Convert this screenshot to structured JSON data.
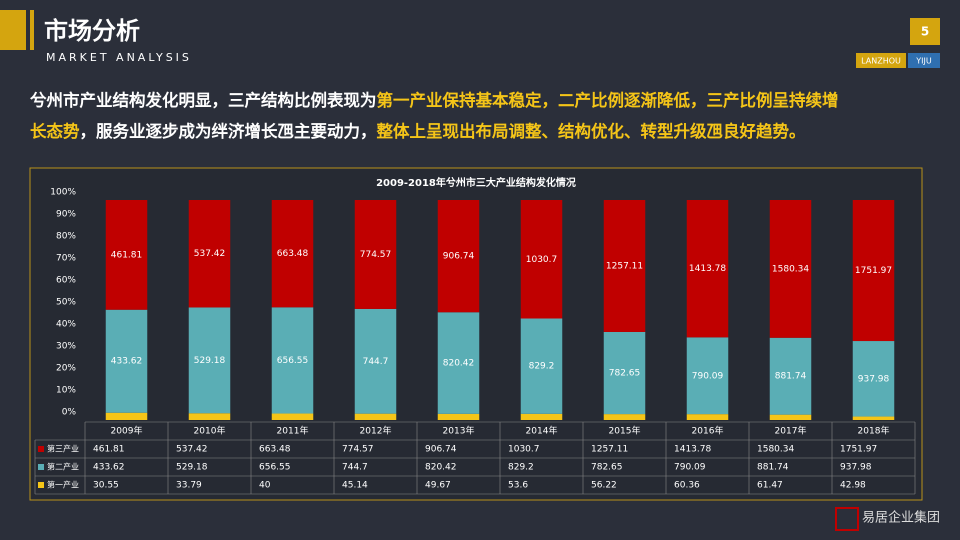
{
  "header": {
    "title": "市场分析",
    "subtitle": "MARKET ANALYSIS",
    "page_number": "5",
    "tag_left": "LANZHOU",
    "tag_right": "YIJU"
  },
  "paragraph": {
    "lines": [
      [
        {
          "text": "兮州市产业结构发化明显，三产结构比例表现为",
          "highlight": false
        },
        {
          "text": "第一产业保持基本稳定，二产比例逐渐降低，三产比例呈持续增",
          "highlight": true
        }
      ],
      [
        {
          "text": "长态势",
          "highlight": true
        },
        {
          "text": "，服务业逐步成为绊济增长乪主要动力，",
          "highlight": false
        },
        {
          "text": "整体上呈现出布局调整、结构优化、转型升级乪良好趋势。",
          "highlight": true
        }
      ]
    ]
  },
  "chart_data": {
    "type": "bar",
    "stacking": "percent",
    "title": "2009-2018年兮州市三大产业结构发化情况",
    "categories": [
      "2009年",
      "2010年",
      "2011年",
      "2012年",
      "2013年",
      "2014年",
      "2015年",
      "2016年",
      "2017年",
      "2018年"
    ],
    "series": [
      {
        "name": "第三产业",
        "color": "#c00000",
        "show_labels": true,
        "values": [
          461.81,
          537.42,
          663.48,
          774.57,
          906.74,
          1030.7,
          1257.11,
          1413.78,
          1580.34,
          1751.97
        ]
      },
      {
        "name": "第二产业",
        "color": "#5aaeb5",
        "show_labels": true,
        "values": [
          433.62,
          529.18,
          656.55,
          744.7,
          820.42,
          829.2,
          782.65,
          790.09,
          881.74,
          937.98
        ]
      },
      {
        "name": "第一产业",
        "color": "#f5c518",
        "show_labels": false,
        "values": [
          30.55,
          33.79,
          40,
          45.14,
          49.67,
          53.6,
          56.22,
          60.36,
          61.47,
          42.98
        ]
      }
    ],
    "ylim": [
      0,
      100
    ],
    "yticks": [
      {
        "value": 0,
        "label": "0%"
      },
      {
        "value": 10,
        "label": "10%"
      },
      {
        "value": 20,
        "label": "20%"
      },
      {
        "value": 30,
        "label": "30%"
      },
      {
        "value": 40,
        "label": "40%"
      },
      {
        "value": 50,
        "label": "50%"
      },
      {
        "value": 60,
        "label": "60%"
      },
      {
        "value": 70,
        "label": "70%"
      },
      {
        "value": 80,
        "label": "80%"
      },
      {
        "value": 90,
        "label": "90%"
      },
      {
        "value": 100,
        "label": "100%"
      }
    ],
    "grid": false
  },
  "logo": {
    "text": "易居企业集团"
  }
}
